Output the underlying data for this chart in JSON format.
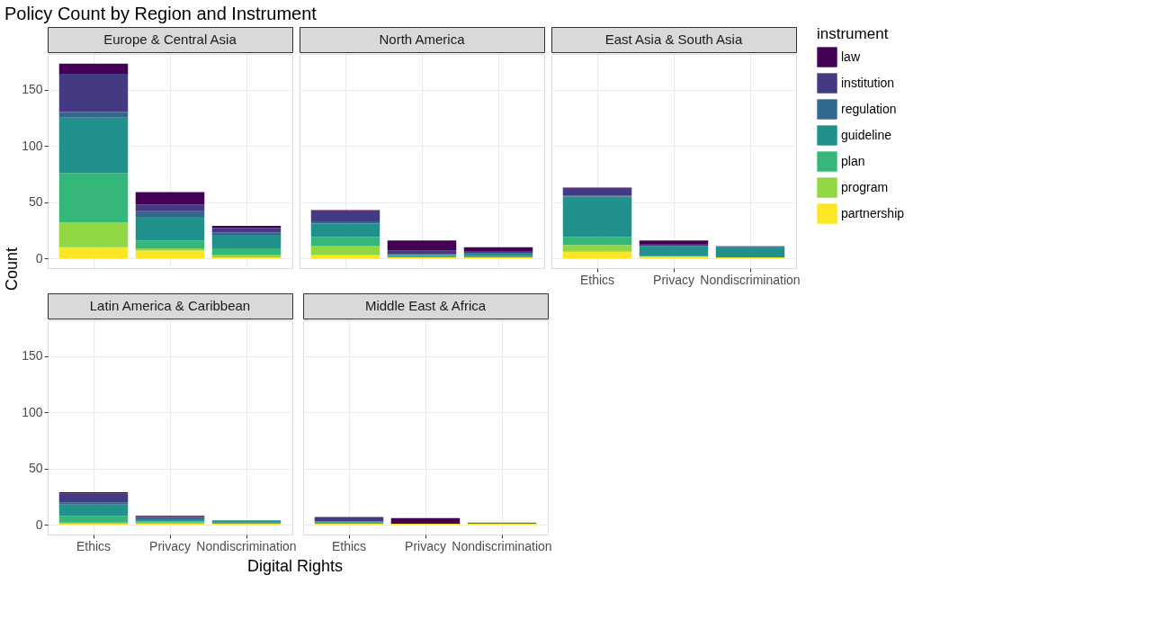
{
  "chart_data": [
    {
      "type": "bar",
      "stacked": true,
      "title": "Policy Count by Region and Instrument",
      "subtitle": "Europe & Central Asia",
      "categories": [
        "Ethics",
        "Privacy",
        "Nondiscrimination"
      ],
      "ylim": [
        -8.65,
        181.65
      ],
      "yticks": [
        0,
        50,
        100,
        150
      ],
      "grid": true,
      "legend": "right",
      "legend_title": "instrument",
      "tick_labels": "y",
      "series": [
        {
          "name": "partnership",
          "color": "#fde725",
          "values": [
            10,
            7,
            1
          ]
        },
        {
          "name": "program",
          "color": "#90d743",
          "values": [
            22,
            2,
            2
          ]
        },
        {
          "name": "plan",
          "color": "#35b779",
          "values": [
            44,
            7,
            6
          ]
        },
        {
          "name": "guideline",
          "color": "#21918c",
          "values": [
            49,
            21,
            12
          ]
        },
        {
          "name": "regulation",
          "color": "#31688e",
          "values": [
            5,
            5,
            2
          ]
        },
        {
          "name": "institution",
          "color": "#443983",
          "values": [
            34,
            6,
            4
          ]
        },
        {
          "name": "law",
          "color": "#440154",
          "values": [
            9,
            11,
            2
          ]
        }
      ]
    },
    {
      "type": "bar",
      "stacked": true,
      "subtitle": "North America",
      "categories": [
        "Ethics",
        "Privacy",
        "Nondiscrimination"
      ],
      "ylim": [
        -8.65,
        181.65
      ],
      "yticks": [
        0,
        50,
        100,
        150
      ],
      "grid": true,
      "tick_labels": false,
      "series": [
        {
          "name": "partnership",
          "color": "#fde725",
          "values": [
            3,
            1,
            1
          ]
        },
        {
          "name": "program",
          "color": "#90d743",
          "values": [
            8,
            null,
            null
          ]
        },
        {
          "name": "plan",
          "color": "#35b779",
          "values": [
            8,
            1,
            1
          ]
        },
        {
          "name": "guideline",
          "color": "#21918c",
          "values": [
            12,
            1,
            3
          ]
        },
        {
          "name": "regulation",
          "color": "#31688e",
          "values": [
            2,
            1,
            null
          ]
        },
        {
          "name": "institution",
          "color": "#443983",
          "values": [
            9,
            3,
            1
          ]
        },
        {
          "name": "law",
          "color": "#440154",
          "values": [
            1,
            9,
            4
          ]
        }
      ]
    },
    {
      "type": "bar",
      "stacked": true,
      "subtitle": "East Asia & South Asia",
      "categories": [
        "Ethics",
        "Privacy",
        "Nondiscrimination"
      ],
      "ylim": [
        -8.65,
        181.65
      ],
      "yticks": [
        0,
        50,
        100,
        150
      ],
      "grid": true,
      "tick_labels": "x",
      "series": [
        {
          "name": "partnership",
          "color": "#fde725",
          "values": [
            6,
            2,
            1
          ]
        },
        {
          "name": "program",
          "color": "#90d743",
          "values": [
            6,
            null,
            null
          ]
        },
        {
          "name": "plan",
          "color": "#35b779",
          "values": [
            7,
            null,
            null
          ]
        },
        {
          "name": "guideline",
          "color": "#21918c",
          "values": [
            36,
            9,
            9
          ]
        },
        {
          "name": "regulation",
          "color": "#31688e",
          "values": [
            1,
            null,
            1
          ]
        },
        {
          "name": "institution",
          "color": "#443983",
          "values": [
            6,
            2,
            null
          ]
        },
        {
          "name": "law",
          "color": "#440154",
          "values": [
            1,
            3,
            null
          ]
        }
      ]
    },
    {
      "type": "bar",
      "stacked": true,
      "subtitle": "Latin America & Caribbean",
      "ylabel": "Count",
      "categories": [
        "Ethics",
        "Privacy",
        "Nondiscrimination"
      ],
      "ylim": [
        -8.65,
        181.65
      ],
      "yticks": [
        0,
        50,
        100,
        150
      ],
      "grid": true,
      "series": [
        {
          "name": "partnership",
          "color": "#fde725",
          "values": [
            1,
            1,
            1
          ]
        },
        {
          "name": "program",
          "color": "#90d743",
          "values": [
            1,
            1,
            null
          ]
        },
        {
          "name": "plan",
          "color": "#35b779",
          "values": [
            6,
            1,
            1
          ]
        },
        {
          "name": "guideline",
          "color": "#21918c",
          "values": [
            10,
            2,
            2
          ]
        },
        {
          "name": "regulation",
          "color": "#31688e",
          "values": [
            2,
            1,
            null
          ]
        },
        {
          "name": "institution",
          "color": "#443983",
          "values": [
            8,
            1,
            null
          ]
        },
        {
          "name": "law",
          "color": "#440154",
          "values": [
            1,
            1,
            null
          ]
        }
      ]
    },
    {
      "type": "bar",
      "stacked": true,
      "subtitle": "Middle East & Africa",
      "xlabel": "Digital Rights",
      "categories": [
        "Ethics",
        "Privacy",
        "Nondiscrimination"
      ],
      "ylim": [
        -8.65,
        181.65
      ],
      "yticks": [
        0,
        50,
        100,
        150
      ],
      "grid": true,
      "tick_labels": "x",
      "series": [
        {
          "name": "partnership",
          "color": "#fde725",
          "values": [
            1,
            1,
            1
          ]
        },
        {
          "name": "plan",
          "color": "#35b779",
          "values": [
            1,
            null,
            null
          ]
        },
        {
          "name": "guideline",
          "color": "#21918c",
          "values": [
            1,
            null,
            1
          ]
        },
        {
          "name": "institution",
          "color": "#443983",
          "values": [
            4,
            null,
            null
          ]
        },
        {
          "name": "law",
          "color": "#440154",
          "values": [
            null,
            5,
            null
          ]
        }
      ]
    }
  ]
}
